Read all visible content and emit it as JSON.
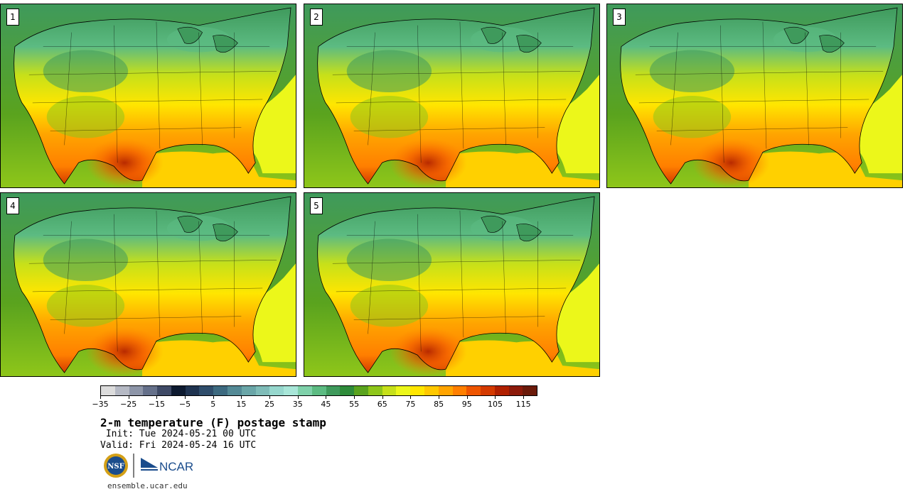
{
  "panels": [
    {
      "label": "1"
    },
    {
      "label": "2"
    },
    {
      "label": "3"
    },
    {
      "label": "4"
    },
    {
      "label": "5"
    }
  ],
  "colorbar": {
    "colors": [
      "#dcdcdc",
      "#b5b9c4",
      "#8d95a8",
      "#65708a",
      "#3f4a66",
      "#0d1a30",
      "#1f3350",
      "#2f4d6b",
      "#3d6a80",
      "#548a96",
      "#6aa6a8",
      "#7fbcb8",
      "#96d7cd",
      "#a8e6d8",
      "#7fd1aa",
      "#5cbb82",
      "#3f9a5c",
      "#2e8b3a",
      "#5aa31e",
      "#8ec61a",
      "#c6e01a",
      "#ecf71a",
      "#ffe600",
      "#ffc800",
      "#ffa400",
      "#ff7f00",
      "#ee5500",
      "#d43a00",
      "#b02000",
      "#8c1a0a",
      "#6b1a0a"
    ],
    "tick_values": [
      "−35",
      "−25",
      "−15",
      "−5",
      "5",
      "15",
      "25",
      "35",
      "45",
      "55",
      "65",
      "75",
      "85",
      "95",
      "105",
      "115"
    ]
  },
  "title": "2-m temperature (F) postage stamp",
  "init": " Init: Tue 2024-05-21 00 UTC",
  "valid": "Valid: Fri 2024-05-24 16 UTC",
  "logos": {
    "nsf": "NSF",
    "ncar": "NCAR"
  },
  "url": "ensemble.ucar.edu"
}
